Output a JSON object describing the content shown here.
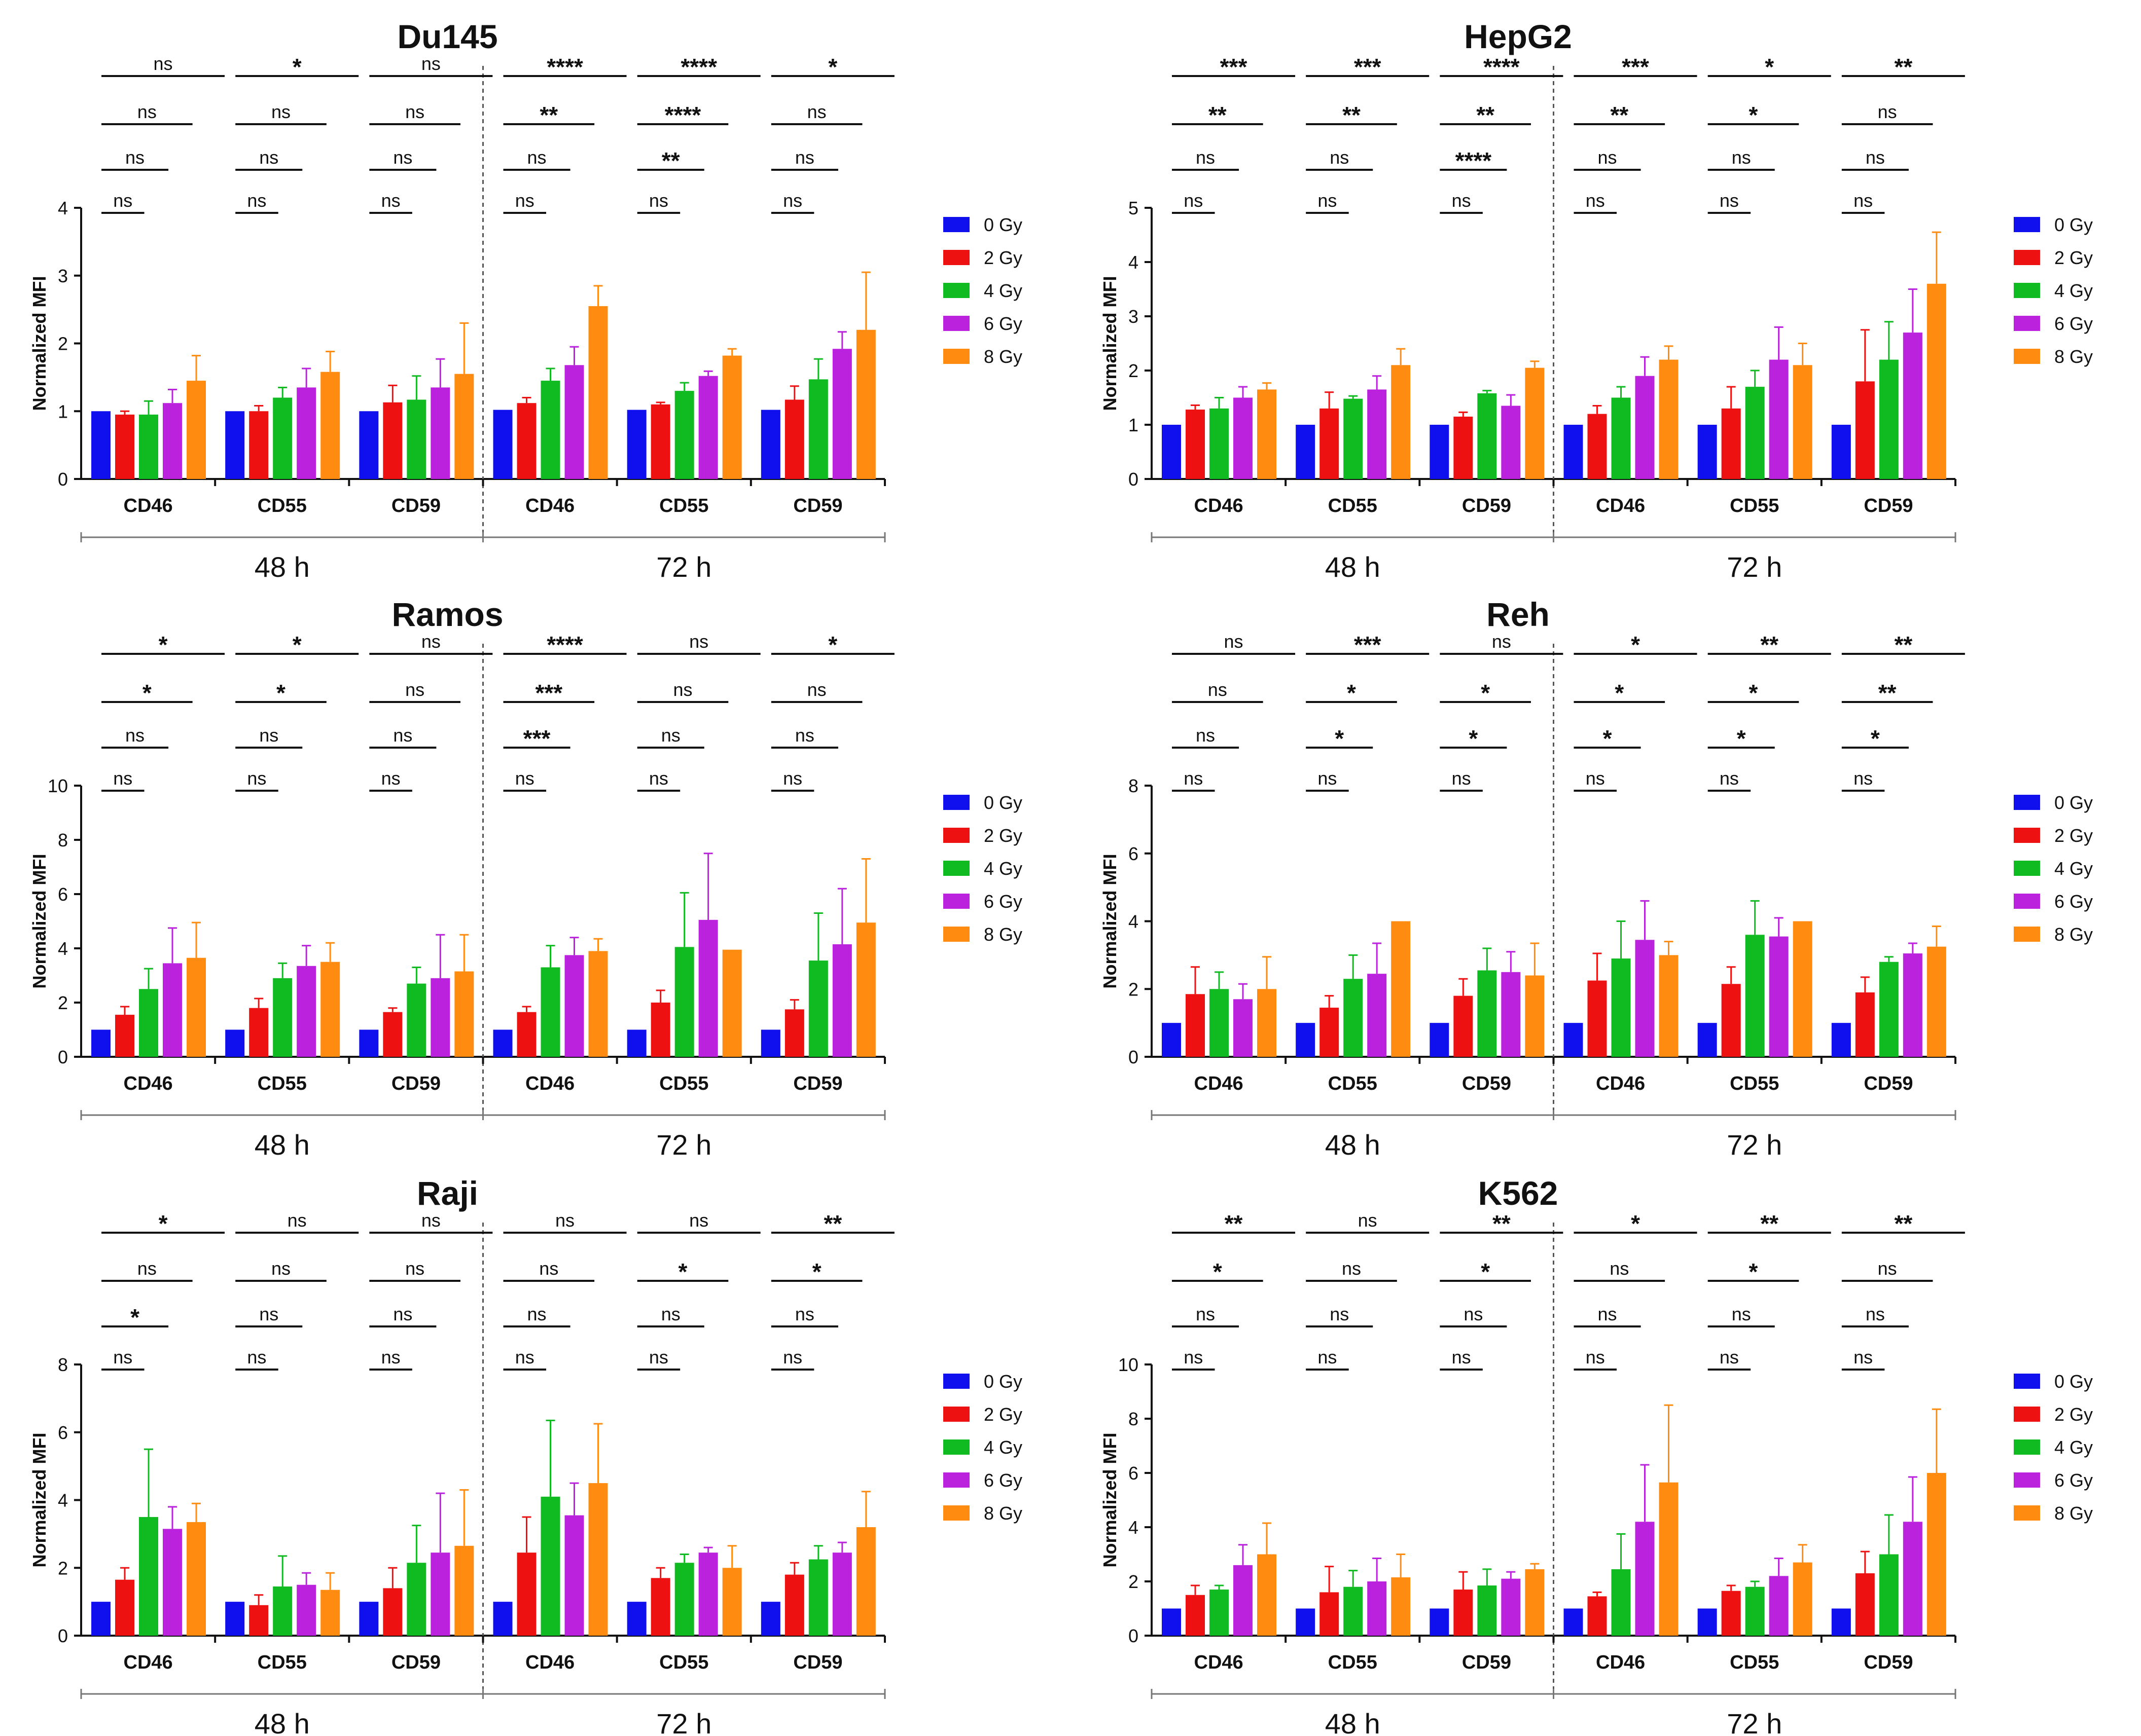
{
  "ylabel": "Normalized MFI",
  "legend": [
    "0 Gy",
    "2 Gy",
    "4 Gy",
    "6 Gy",
    "8 Gy"
  ],
  "colors": [
    "#1010ee",
    "#ee1111",
    "#10bb22",
    "#bb22dd",
    "#ff8c11"
  ],
  "time_labels": [
    "48 h",
    "72 h"
  ],
  "chart_data": [
    {
      "type": "bar",
      "title": "Du145",
      "ylim": [
        0,
        4
      ],
      "yticks": [
        "0",
        "1",
        "2",
        "3",
        "4"
      ],
      "categories": [
        "CD46",
        "CD55",
        "CD59",
        "CD46",
        "CD55",
        "CD59"
      ],
      "groups": [
        "48 h",
        "48 h",
        "48 h",
        "72 h",
        "72 h",
        "72 h"
      ],
      "values": [
        [
          1.0,
          0.95,
          0.95,
          1.12,
          1.45
        ],
        [
          1.0,
          1.0,
          1.2,
          1.35,
          1.58
        ],
        [
          1.0,
          1.13,
          1.17,
          1.35,
          1.55
        ],
        [
          1.02,
          1.12,
          1.45,
          1.68,
          2.55
        ],
        [
          1.02,
          1.1,
          1.3,
          1.52,
          1.82
        ],
        [
          1.02,
          1.17,
          1.47,
          1.92,
          2.2
        ]
      ],
      "errors": [
        [
          0,
          0.05,
          0.2,
          0.2,
          0.37
        ],
        [
          0,
          0.08,
          0.15,
          0.28,
          0.3
        ],
        [
          0,
          0.25,
          0.35,
          0.42,
          0.75
        ],
        [
          0,
          0.08,
          0.18,
          0.27,
          0.3
        ],
        [
          0,
          0.03,
          0.12,
          0.07,
          0.1
        ],
        [
          0,
          0.2,
          0.3,
          0.25,
          0.85
        ]
      ],
      "significance": [
        [
          "ns",
          "ns",
          "ns",
          "ns"
        ],
        [
          "ns",
          "ns",
          "ns",
          "*"
        ],
        [
          "ns",
          "ns",
          "ns",
          "ns"
        ],
        [
          "ns",
          "ns",
          "**",
          "****"
        ],
        [
          "ns",
          "**",
          "****",
          "****"
        ],
        [
          "ns",
          "ns",
          "ns",
          "*"
        ]
      ]
    },
    {
      "type": "bar",
      "title": "HepG2",
      "ylim": [
        0,
        5
      ],
      "yticks": [
        "0",
        "1",
        "2",
        "3",
        "4",
        "5"
      ],
      "categories": [
        "CD46",
        "CD55",
        "CD59",
        "CD46",
        "CD55",
        "CD59"
      ],
      "groups": [
        "48 h",
        "48 h",
        "48 h",
        "72 h",
        "72 h",
        "72 h"
      ],
      "values": [
        [
          1.0,
          1.28,
          1.3,
          1.5,
          1.65
        ],
        [
          1.0,
          1.3,
          1.48,
          1.65,
          2.1
        ],
        [
          1.0,
          1.15,
          1.58,
          1.35,
          2.05
        ],
        [
          1.0,
          1.2,
          1.5,
          1.9,
          2.2
        ],
        [
          1.0,
          1.3,
          1.7,
          2.2,
          2.1
        ],
        [
          1.0,
          1.8,
          2.2,
          2.7,
          3.6
        ]
      ],
      "errors": [
        [
          0,
          0.08,
          0.2,
          0.2,
          0.12
        ],
        [
          0,
          0.3,
          0.05,
          0.25,
          0.3
        ],
        [
          0,
          0.08,
          0.05,
          0.2,
          0.12
        ],
        [
          0,
          0.15,
          0.2,
          0.35,
          0.25
        ],
        [
          0,
          0.4,
          0.3,
          0.6,
          0.4
        ],
        [
          0,
          0.95,
          0.7,
          0.8,
          0.95
        ]
      ],
      "significance": [
        [
          "ns",
          "ns",
          "**",
          "***"
        ],
        [
          "ns",
          "ns",
          "**",
          "***"
        ],
        [
          "ns",
          "****",
          "**",
          "****"
        ],
        [
          "ns",
          "ns",
          "**",
          "***"
        ],
        [
          "ns",
          "ns",
          "*",
          "*"
        ],
        [
          "ns",
          "ns",
          "ns",
          "**"
        ]
      ]
    },
    {
      "type": "bar",
      "title": "Ramos",
      "ylim": [
        0,
        10
      ],
      "yticks": [
        "0",
        "2",
        "4",
        "6",
        "8",
        "10"
      ],
      "categories": [
        "CD46",
        "CD55",
        "CD59",
        "CD46",
        "CD55",
        "CD59"
      ],
      "groups": [
        "48 h",
        "48 h",
        "48 h",
        "72 h",
        "72 h",
        "72 h"
      ],
      "values": [
        [
          1.0,
          1.55,
          2.5,
          3.45,
          3.65
        ],
        [
          1.0,
          1.8,
          2.9,
          3.35,
          3.5
        ],
        [
          1.0,
          1.65,
          2.7,
          2.9,
          3.15
        ],
        [
          1.0,
          1.65,
          3.3,
          3.75,
          3.9
        ],
        [
          1.0,
          2.0,
          4.05,
          5.05,
          3.95
        ],
        [
          1.0,
          1.75,
          3.55,
          4.15,
          4.95
        ]
      ],
      "errors": [
        [
          0,
          0.3,
          0.75,
          1.3,
          1.3
        ],
        [
          0,
          0.35,
          0.55,
          0.75,
          0.7
        ],
        [
          0,
          0.15,
          0.6,
          1.6,
          1.35
        ],
        [
          0,
          0.2,
          0.8,
          0.65,
          0.45
        ],
        [
          0,
          0.45,
          2.0,
          2.45,
          0
        ],
        [
          0,
          0.35,
          1.75,
          2.05,
          2.35
        ]
      ],
      "significance": [
        [
          "ns",
          "ns",
          "*",
          "*"
        ],
        [
          "ns",
          "ns",
          "*",
          "*"
        ],
        [
          "ns",
          "ns",
          "ns",
          "ns"
        ],
        [
          "ns",
          "***",
          "***",
          "****"
        ],
        [
          "ns",
          "ns",
          "ns",
          "ns"
        ],
        [
          "ns",
          "ns",
          "ns",
          "*"
        ]
      ]
    },
    {
      "type": "bar",
      "title": "Reh",
      "ylim": [
        0,
        8
      ],
      "yticks": [
        "0",
        "2",
        "4",
        "6",
        "8"
      ],
      "categories": [
        "CD46",
        "CD55",
        "CD59",
        "CD46",
        "CD55",
        "CD59"
      ],
      "groups": [
        "48 h",
        "48 h",
        "48 h",
        "72 h",
        "72 h",
        "72 h"
      ],
      "values": [
        [
          1.0,
          1.85,
          2.0,
          1.7,
          2.0
        ],
        [
          1.0,
          1.45,
          2.3,
          2.45,
          4.0
        ],
        [
          1.0,
          1.8,
          2.55,
          2.5,
          2.4
        ],
        [
          1.0,
          2.25,
          2.9,
          3.45,
          3.0
        ],
        [
          1.0,
          2.15,
          3.6,
          3.55,
          4.0
        ],
        [
          1.0,
          1.9,
          2.8,
          3.05,
          3.25
        ]
      ],
      "errors": [
        [
          0,
          0.8,
          0.5,
          0.45,
          0.95
        ],
        [
          0,
          0.35,
          0.7,
          0.9,
          0
        ],
        [
          0,
          0.5,
          0.65,
          0.6,
          0.95
        ],
        [
          0,
          0.8,
          1.1,
          1.15,
          0.4
        ],
        [
          0,
          0.5,
          1.0,
          0.55,
          0
        ],
        [
          0,
          0.45,
          0.15,
          0.3,
          0.6
        ]
      ],
      "significance": [
        [
          "ns",
          "ns",
          "ns",
          "ns"
        ],
        [
          "ns",
          "*",
          "*",
          "***"
        ],
        [
          "ns",
          "*",
          "*",
          "ns"
        ],
        [
          "ns",
          "*",
          "*",
          "*"
        ],
        [
          "ns",
          "*",
          "*",
          "**"
        ],
        [
          "ns",
          "*",
          "**",
          "**"
        ]
      ]
    },
    {
      "type": "bar",
      "title": "Raji",
      "ylim": [
        0,
        8
      ],
      "yticks": [
        "0",
        "2",
        "4",
        "6",
        "8"
      ],
      "categories": [
        "CD46",
        "CD55",
        "CD59",
        "CD46",
        "CD55",
        "CD59"
      ],
      "groups": [
        "48 h",
        "48 h",
        "48 h",
        "72 h",
        "72 h",
        "72 h"
      ],
      "values": [
        [
          1.0,
          1.65,
          3.5,
          3.15,
          3.35
        ],
        [
          1.0,
          0.9,
          1.45,
          1.5,
          1.35
        ],
        [
          1.0,
          1.4,
          2.15,
          2.45,
          2.65
        ],
        [
          1.0,
          2.45,
          4.1,
          3.55,
          4.5
        ],
        [
          1.0,
          1.7,
          2.15,
          2.45,
          2.0
        ],
        [
          1.0,
          1.8,
          2.25,
          2.45,
          3.2
        ]
      ],
      "errors": [
        [
          0,
          0.35,
          2.0,
          0.65,
          0.55
        ],
        [
          0,
          0.3,
          0.9,
          0.35,
          0.5
        ],
        [
          0,
          0.6,
          1.1,
          1.75,
          1.65
        ],
        [
          0,
          1.05,
          2.25,
          0.95,
          1.75
        ],
        [
          0,
          0.3,
          0.25,
          0.15,
          0.65
        ],
        [
          0,
          0.35,
          0.4,
          0.3,
          1.05
        ]
      ],
      "significance": [
        [
          "ns",
          "*",
          "ns",
          "*"
        ],
        [
          "ns",
          "ns",
          "ns",
          "ns"
        ],
        [
          "ns",
          "ns",
          "ns",
          "ns"
        ],
        [
          "ns",
          "ns",
          "ns",
          "ns"
        ],
        [
          "ns",
          "ns",
          "*",
          "ns"
        ],
        [
          "ns",
          "ns",
          "*",
          "**"
        ]
      ]
    },
    {
      "type": "bar",
      "title": "K562",
      "ylim": [
        0,
        10
      ],
      "yticks": [
        "0",
        "2",
        "4",
        "6",
        "8",
        "10"
      ],
      "categories": [
        "CD46",
        "CD55",
        "CD59",
        "CD46",
        "CD55",
        "CD59"
      ],
      "groups": [
        "48 h",
        "48 h",
        "48 h",
        "72 h",
        "72 h",
        "72 h"
      ],
      "values": [
        [
          1.0,
          1.5,
          1.7,
          2.6,
          3.0
        ],
        [
          1.0,
          1.6,
          1.8,
          2.0,
          2.15
        ],
        [
          1.0,
          1.7,
          1.85,
          2.1,
          2.45
        ],
        [
          1.0,
          1.45,
          2.45,
          4.2,
          5.65
        ],
        [
          1.0,
          1.65,
          1.8,
          2.2,
          2.7
        ],
        [
          1.0,
          2.3,
          3.0,
          4.2,
          6.0
        ]
      ],
      "errors": [
        [
          0,
          0.35,
          0.15,
          0.75,
          1.15
        ],
        [
          0,
          0.95,
          0.6,
          0.85,
          0.85
        ],
        [
          0,
          0.65,
          0.6,
          0.25,
          0.2
        ],
        [
          0,
          0.15,
          1.3,
          2.1,
          2.85
        ],
        [
          0,
          0.2,
          0.2,
          0.65,
          0.65
        ],
        [
          0,
          0.8,
          1.45,
          1.65,
          2.35
        ]
      ],
      "significance": [
        [
          "ns",
          "ns",
          "*",
          "**"
        ],
        [
          "ns",
          "ns",
          "ns",
          "ns"
        ],
        [
          "ns",
          "ns",
          "*",
          "**"
        ],
        [
          "ns",
          "ns",
          "ns",
          "*"
        ],
        [
          "ns",
          "ns",
          "*",
          "**"
        ],
        [
          "ns",
          "ns",
          "ns",
          "**"
        ]
      ]
    }
  ]
}
